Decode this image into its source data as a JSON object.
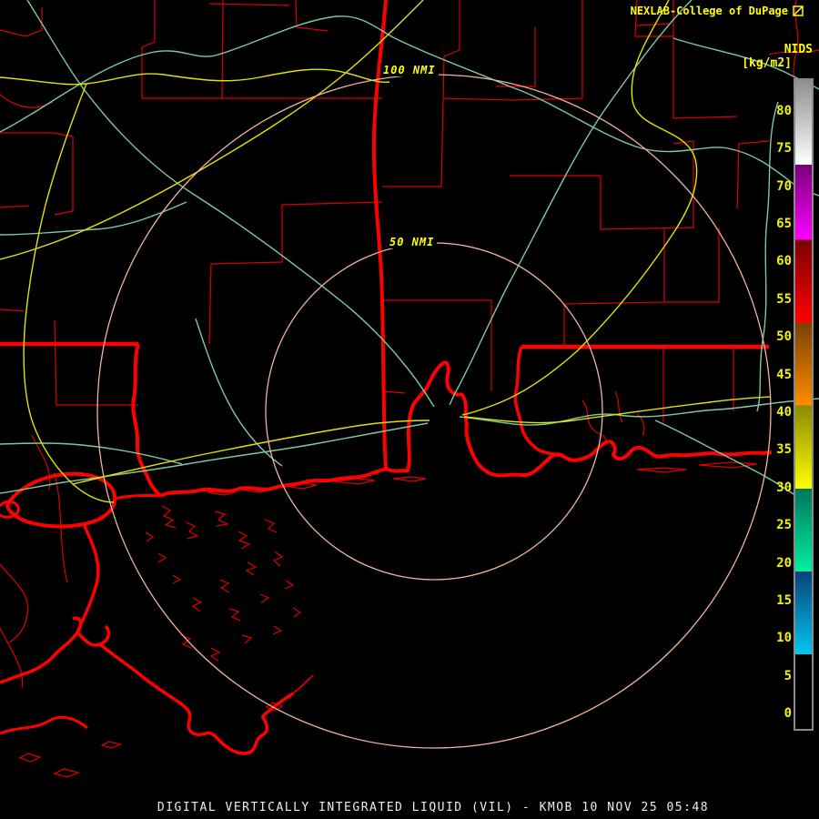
{
  "header": {
    "brand": "NEXLAB-College of DuPage",
    "brand_icon": "box-slash-icon"
  },
  "rings": {
    "outer_label": "100 NMI",
    "inner_label": "50 NMI"
  },
  "colorbar": {
    "product_label": "NIDS",
    "units_label": "[kg/m2]",
    "ticks": [
      80,
      75,
      70,
      65,
      60,
      55,
      50,
      45,
      40,
      35,
      30,
      25,
      20,
      15,
      10,
      5,
      0
    ],
    "segments": [
      {
        "from": 84.2,
        "to": 73,
        "color_top": "#8e8e8e",
        "color_bottom": "#ffffff"
      },
      {
        "from": 73,
        "to": 63,
        "color_top": "#760076",
        "color_bottom": "#ff00ff"
      },
      {
        "from": 63,
        "to": 52,
        "color_top": "#7a0000",
        "color_bottom": "#ff0000"
      },
      {
        "from": 52,
        "to": 41,
        "color_top": "#7a4000",
        "color_bottom": "#ff8c00"
      },
      {
        "from": 41,
        "to": 30,
        "color_top": "#8a8a00",
        "color_bottom": "#ffff00"
      },
      {
        "from": 30,
        "to": 19,
        "color_top": "#00755a",
        "color_bottom": "#00f0a4"
      },
      {
        "from": 19,
        "to": 8,
        "color_top": "#0a4078",
        "color_bottom": "#00c8f0"
      },
      {
        "from": 8,
        "to": -1.9,
        "color_top": "#000000",
        "color_bottom": "#000000"
      }
    ]
  },
  "footer": {
    "title": "DIGITAL VERTICALLY INTEGRATED LIQUID (VIL) - KMOB 10 NOV 25 05:48"
  },
  "radar": {
    "site": "KMOB",
    "product": "DIGITAL VERTICALLY INTEGRATED LIQUID (VIL)",
    "timestamp": "10 NOV 25 05:48"
  },
  "colors": {
    "background": "#000000",
    "county_line": "#dc0000",
    "state_line": "#ff0000",
    "coastline": "#ff0000",
    "road_green": "#7ec9a0",
    "road_yellow": "#e3e300",
    "range_ring": "#f2b49e",
    "map_label_yellow": "#ffff00",
    "tick_label_yellow": "#f2f200",
    "title_white": "#ededed",
    "colorbar_border": "#8a8a8a"
  }
}
